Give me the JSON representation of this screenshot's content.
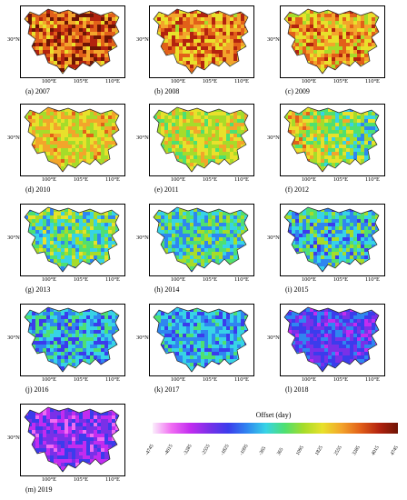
{
  "axes": {
    "lat_label": "30°N",
    "lon_labels": [
      "100°E",
      "105°E",
      "110°E"
    ]
  },
  "panels": [
    {
      "caption": "(a) 2007",
      "mean_offset": 3300,
      "spread": 1500
    },
    {
      "caption": "(b) 2008",
      "mean_offset": 2600,
      "spread": 1300
    },
    {
      "caption": "(c) 2009",
      "mean_offset": 2300,
      "spread": 1300
    },
    {
      "caption": "(d) 2010",
      "mean_offset": 1800,
      "spread": 1100
    },
    {
      "caption": "(e) 2011",
      "mean_offset": 1400,
      "spread": 1000
    },
    {
      "caption": "(f) 2012",
      "mean_offset": 1000,
      "spread": 1400
    },
    {
      "caption": "(g) 2013",
      "mean_offset": 300,
      "spread": 1300
    },
    {
      "caption": "(h) 2014",
      "mean_offset": 0,
      "spread": 1300
    },
    {
      "caption": "(i) 2015",
      "mean_offset": -200,
      "spread": 1400
    },
    {
      "caption": "(j) 2016",
      "mean_offset": -600,
      "spread": 1300
    },
    {
      "caption": "(k) 2017",
      "mean_offset": -700,
      "spread": 1000
    },
    {
      "caption": "(l) 2018",
      "mean_offset": -1900,
      "spread": 1000
    },
    {
      "caption": "(m) 2019",
      "mean_offset": -2500,
      "spread": 1100
    }
  ],
  "legend": {
    "title": "Offset (day)",
    "ticks": [
      "-4745",
      "-4015",
      "-3285",
      "-2555",
      "-1825",
      "-1095",
      "-365",
      "365",
      "1095",
      "1825",
      "2555",
      "3285",
      "4015",
      "4745"
    ],
    "range": [
      -4745,
      4745
    ],
    "colors": [
      "#fbeefb",
      "#f06cf2",
      "#c22cf0",
      "#7a30e8",
      "#3b3cec",
      "#2f86f0",
      "#37d3e6",
      "#4ee071",
      "#a6dc2a",
      "#e8e12b",
      "#f3a52b",
      "#e26019",
      "#b3230f",
      "#6e1405"
    ]
  }
}
